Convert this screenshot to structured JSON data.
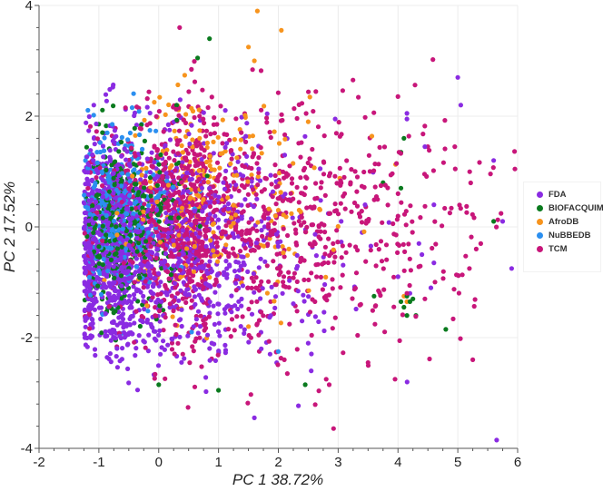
{
  "chart_data": {
    "type": "scatter",
    "title": "",
    "xlabel": "PC 1 38.72%",
    "ylabel": "PC 2 17.52%",
    "xlim": [
      -2,
      6
    ],
    "ylim": [
      -4,
      4
    ],
    "x_ticks": [
      "-2",
      "-1",
      "0",
      "1",
      "2",
      "3",
      "4",
      "5",
      "6"
    ],
    "y_ticks": [
      "4",
      "2",
      "0",
      "-2",
      "-4"
    ],
    "grid": true,
    "legend_position": "right",
    "series": [
      {
        "name": "FDA",
        "color": "#8a2be2",
        "cluster": {
          "cx": -0.45,
          "cy": -0.35,
          "sx": 0.55,
          "sy": 1.0,
          "n": 1500,
          "skew_x": 0.9
        },
        "outliers": [
          [
            5.05,
            2.2
          ],
          [
            5.0,
            2.7
          ],
          [
            4.15,
            2.05
          ],
          [
            4.15,
            1.95
          ],
          [
            4.45,
            1.45
          ],
          [
            5.6,
            1.2
          ],
          [
            4.6,
            0.4
          ],
          [
            5.75,
            0.1
          ],
          [
            5.9,
            -0.75
          ],
          [
            4.35,
            -0.3
          ],
          [
            4.4,
            -0.5
          ],
          [
            4.6,
            -0.65
          ],
          [
            4.0,
            -0.9
          ],
          [
            4.55,
            -1.1
          ],
          [
            5.65,
            -3.85
          ],
          [
            2.95,
            1.95
          ],
          [
            2.7,
            1.05
          ],
          [
            3.45,
            0.4
          ],
          [
            3.05,
            0.1
          ],
          [
            3.4,
            -0.1
          ],
          [
            4.2,
            -1.2
          ],
          [
            2.5,
            -2.1
          ],
          [
            2.55,
            -2.6
          ],
          [
            1.6,
            -3.45
          ]
        ]
      },
      {
        "name": "BIOFACQUIM",
        "color": "#0a7a1e",
        "cluster": {
          "cx": -0.6,
          "cy": 0.05,
          "sx": 0.3,
          "sy": 0.75,
          "n": 420,
          "skew_x": 0.4
        },
        "outliers": [
          [
            4.1,
            1.6
          ],
          [
            4.05,
            1.35
          ],
          [
            3.75,
            0.8
          ],
          [
            4.05,
            0.7
          ],
          [
            5.6,
            0.1
          ],
          [
            4.8,
            -1.85
          ],
          [
            3.6,
            -1.25
          ],
          [
            4.05,
            -1.35
          ],
          [
            4.1,
            -1.45
          ],
          [
            4.15,
            -1.25
          ],
          [
            4.2,
            -1.35
          ],
          [
            4.25,
            -1.3
          ],
          [
            4.15,
            -1.6
          ],
          [
            4.3,
            -1.6
          ],
          [
            2.45,
            -2.85
          ],
          [
            0.85,
            3.4
          ],
          [
            0.65,
            3.05
          ],
          [
            0.3,
            2.2
          ],
          [
            1.0,
            -2.95
          ],
          [
            0.0,
            -2.85
          ]
        ]
      },
      {
        "name": "AfroDB",
        "color": "#f7941d",
        "cluster": {
          "cx": 0.7,
          "cy": 0.6,
          "sx": 0.6,
          "sy": 0.9,
          "n": 260,
          "skew_x": 0.6
        },
        "outliers": [
          [
            1.65,
            3.9
          ],
          [
            2.05,
            3.55
          ],
          [
            1.5,
            3.25
          ],
          [
            1.6,
            3.0
          ],
          [
            2.5,
            1.9
          ],
          [
            4.15,
            -1.35
          ],
          [
            4.1,
            -1.25
          ],
          [
            1.5,
            -1.8
          ]
        ]
      },
      {
        "name": "NuBBEDB",
        "color": "#2b8ff0",
        "cluster": {
          "cx": -0.75,
          "cy": 0.2,
          "sx": 0.3,
          "sy": 0.7,
          "n": 360,
          "skew_x": 0.3
        },
        "outliers": [
          [
            2.0,
            -2.25
          ],
          [
            0.55,
            -1.9
          ]
        ]
      },
      {
        "name": "TCM",
        "color": "#c8167a",
        "cluster": {
          "cx": 0.8,
          "cy": 0.05,
          "sx": 0.85,
          "sy": 1.05,
          "n": 1300,
          "skew_x": 0.9
        },
        "outliers": [
          [
            0.35,
            3.6
          ],
          [
            4.95,
            1.45
          ],
          [
            4.0,
            0.6
          ],
          [
            3.5,
            0.1
          ],
          [
            4.15,
            -1.2
          ],
          [
            4.45,
            -1.3
          ],
          [
            3.5,
            -2.45
          ],
          [
            3.95,
            -2.75
          ],
          [
            5.25,
            -2.4
          ],
          [
            2.8,
            -2.75
          ],
          [
            2.85,
            -2.85
          ],
          [
            2.1,
            -2.4
          ],
          [
            2.15,
            -2.65
          ]
        ]
      }
    ]
  },
  "legend": {
    "items": [
      {
        "label": "FDA",
        "color": "#8a2be2"
      },
      {
        "label": "BIOFACQUIM",
        "color": "#0a7a1e"
      },
      {
        "label": "AfroDB",
        "color": "#f7941d"
      },
      {
        "label": "NuBBEDB",
        "color": "#2b8ff0"
      },
      {
        "label": "TCM",
        "color": "#c8167a"
      }
    ]
  }
}
